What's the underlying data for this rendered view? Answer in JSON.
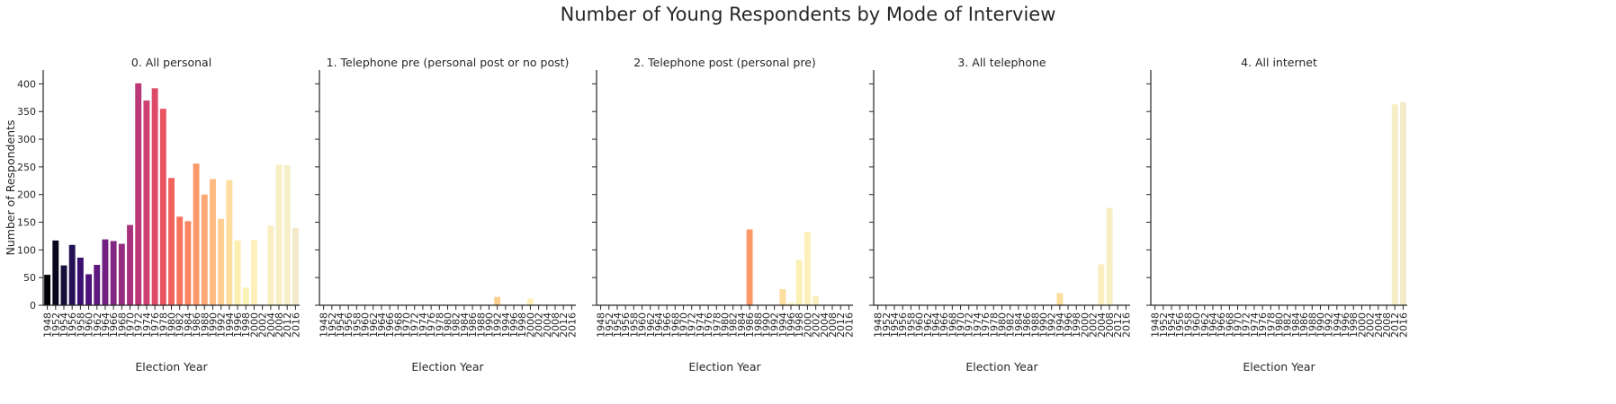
{
  "figure": {
    "title": "Number of Young Respondents by Mode of Interview",
    "ylabel": "Number of Respondents"
  },
  "chart_data": {
    "type": "bar",
    "title": "Number of Young Respondents by Mode of Interview",
    "ylabel": "Number of Respondents",
    "xlabel": "Election Year",
    "ylim": [
      0,
      425
    ],
    "yticks": [
      0,
      50,
      100,
      150,
      200,
      250,
      300,
      350,
      400
    ],
    "grid": false,
    "sharey": true,
    "categories": [
      "1948",
      "1952",
      "1954",
      "1956",
      "1958",
      "1960",
      "1962",
      "1964",
      "1966",
      "1968",
      "1970",
      "1972",
      "1974",
      "1976",
      "1978",
      "1980",
      "1982",
      "1984",
      "1986",
      "1988",
      "1990",
      "1992",
      "1994",
      "1996",
      "1998",
      "2000",
      "2002",
      "2004",
      "2008",
      "2012",
      "2016"
    ],
    "panels": [
      {
        "title": "0. All personal",
        "values": [
          55,
          117,
          72,
          109,
          86,
          56,
          73,
          119,
          116,
          111,
          145,
          401,
          370,
          392,
          355,
          230,
          160,
          152,
          256,
          200,
          228,
          156,
          226,
          117,
          32,
          118,
          0,
          144,
          254,
          253,
          140
        ]
      },
      {
        "title": "1. Telephone pre (personal post or no post)",
        "values": [
          0,
          0,
          0,
          0,
          0,
          0,
          0,
          0,
          0,
          0,
          0,
          0,
          0,
          0,
          0,
          0,
          0,
          0,
          0,
          0,
          0,
          15,
          0,
          0,
          0,
          12,
          0,
          0,
          0,
          0,
          0
        ]
      },
      {
        "title": "2. Telephone post (personal pre)",
        "values": [
          0,
          0,
          0,
          0,
          0,
          0,
          0,
          0,
          0,
          0,
          0,
          0,
          0,
          0,
          0,
          0,
          0,
          0,
          137,
          0,
          0,
          0,
          29,
          4,
          82,
          133,
          17,
          0,
          0,
          0,
          0
        ]
      },
      {
        "title": "3. All telephone",
        "values": [
          0,
          0,
          0,
          0,
          0,
          0,
          0,
          0,
          0,
          0,
          0,
          0,
          0,
          0,
          0,
          0,
          0,
          0,
          0,
          0,
          0,
          0,
          22,
          0,
          0,
          0,
          0,
          74,
          176,
          0,
          0
        ]
      },
      {
        "title": "4. All internet",
        "values": [
          0,
          0,
          0,
          0,
          0,
          0,
          0,
          0,
          0,
          0,
          0,
          0,
          0,
          0,
          0,
          0,
          0,
          0,
          0,
          0,
          0,
          0,
          0,
          0,
          0,
          0,
          0,
          0,
          0,
          363,
          367
        ]
      }
    ],
    "palette": [
      "#000004",
      "#08061d",
      "#150e38",
      "#251155",
      "#3a0f70",
      "#4d127b",
      "#5f187f",
      "#711f81",
      "#832681",
      "#952c80",
      "#a8327d",
      "#bb3878",
      "#cd4071",
      "#dd4968",
      "#e95462",
      "#f2625d",
      "#f7735c",
      "#fb8561",
      "#fd9869",
      "#fea973",
      "#febb81",
      "#fecd90",
      "#fdde9e",
      "#fcefb0",
      "#fcf1b5",
      "#fdf0ba",
      "#fcf0c0",
      "#fbefc2",
      "#f9efc4",
      "#f6eec6",
      "#f2eac8"
    ]
  }
}
